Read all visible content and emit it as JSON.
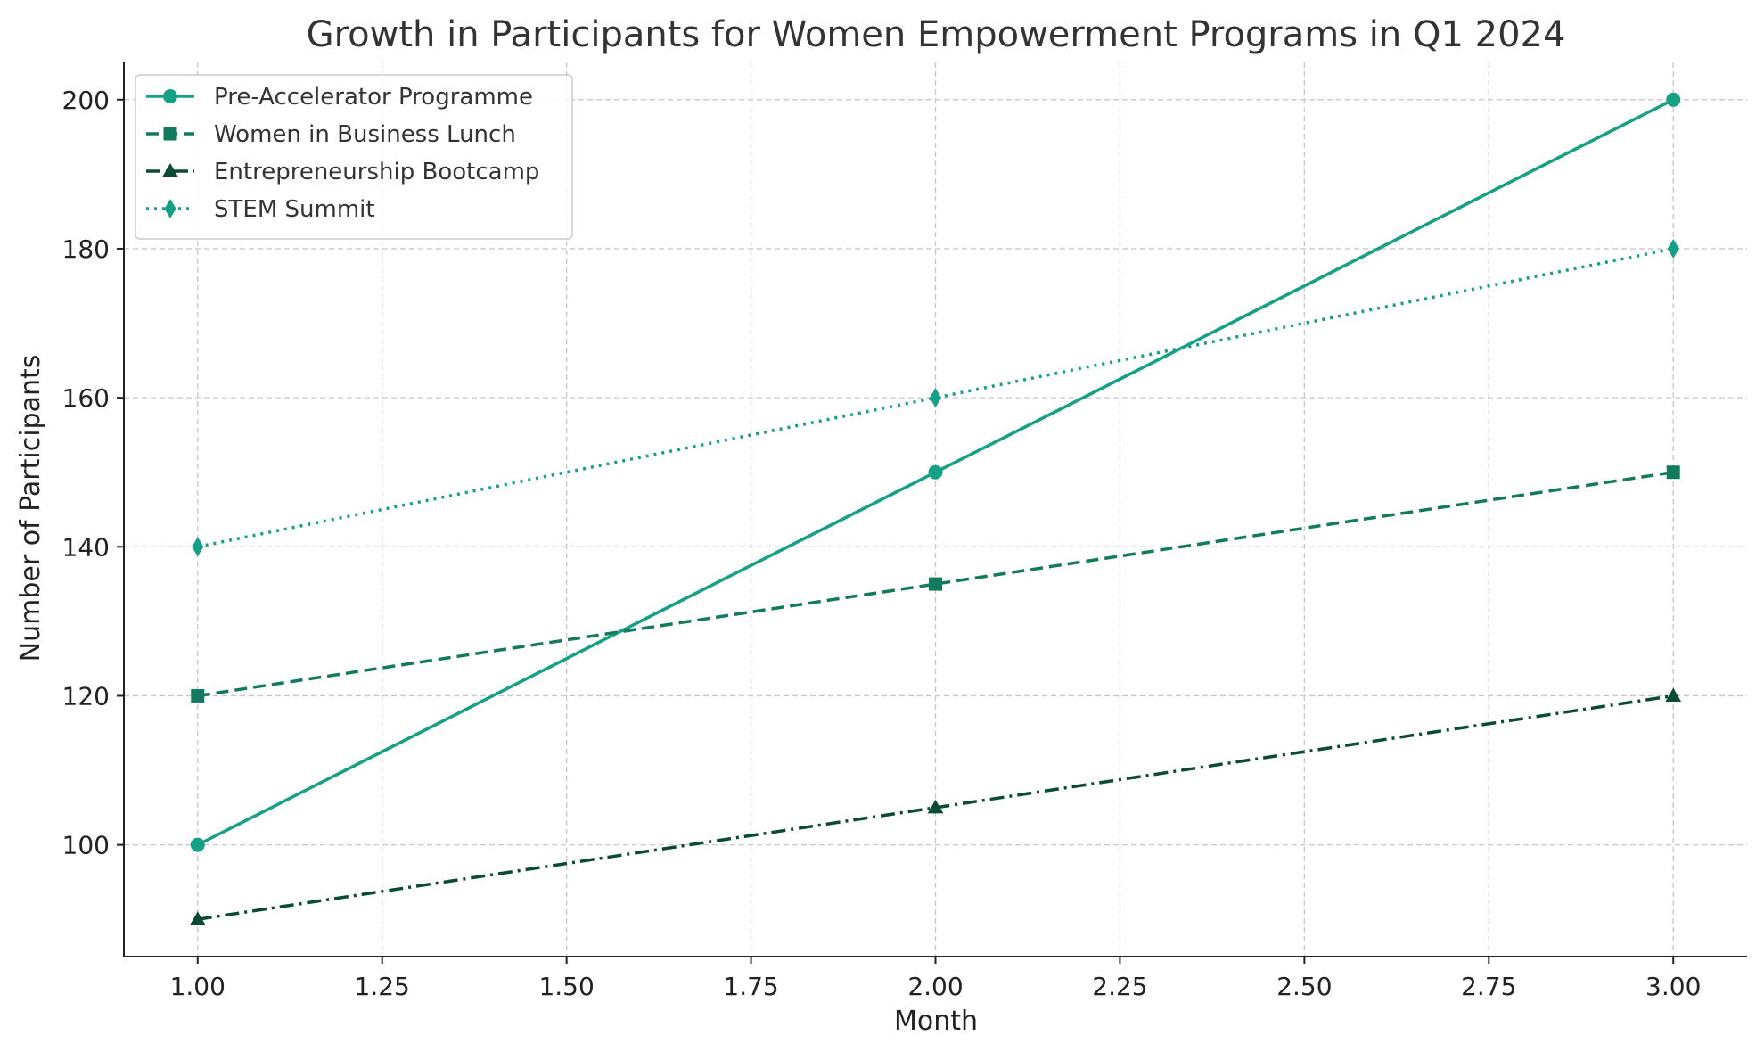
{
  "chart_data": {
    "type": "line",
    "title": "Growth in Participants for Women Empowerment Programs in Q1 2024",
    "xlabel": "Month",
    "ylabel": "Number of Participants",
    "x": [
      1,
      2,
      3
    ],
    "xlim": [
      0.9,
      3.1
    ],
    "ylim": [
      85,
      205
    ],
    "xticks": [
      1.0,
      1.25,
      1.5,
      1.75,
      2.0,
      2.25,
      2.5,
      2.75,
      3.0
    ],
    "xtick_labels": [
      "1.00",
      "1.25",
      "1.50",
      "1.75",
      "2.00",
      "2.25",
      "2.50",
      "2.75",
      "3.00"
    ],
    "yticks": [
      100,
      120,
      140,
      160,
      180,
      200
    ],
    "ytick_labels": [
      "100",
      "120",
      "140",
      "160",
      "180",
      "200"
    ],
    "grid": true,
    "legend_position": "top-left",
    "series": [
      {
        "name": "Pre-Accelerator Programme",
        "values": [
          100,
          150,
          200
        ],
        "color": "#16a085",
        "line_style": "solid",
        "marker": "circle"
      },
      {
        "name": "Women in Business Lunch",
        "values": [
          120,
          135,
          150
        ],
        "color": "#137a5e",
        "line_style": "dashed",
        "marker": "square"
      },
      {
        "name": "Entrepreneurship Bootcamp",
        "values": [
          90,
          105,
          120
        ],
        "color": "#0b4a35",
        "line_style": "dashdot",
        "marker": "triangle"
      },
      {
        "name": "STEM Summit",
        "values": [
          140,
          160,
          180
        ],
        "color": "#16a085",
        "line_style": "dotted",
        "marker": "diamond"
      }
    ]
  }
}
